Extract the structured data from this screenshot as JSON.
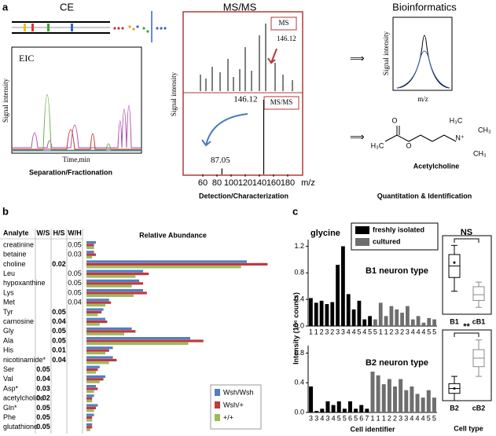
{
  "panel_a": {
    "label": "a",
    "ce": "CE",
    "msms": "MS/MS",
    "bio": "Bioinformatics",
    "eic": "EIC",
    "eic_ylabel": "Signal intensity",
    "eic_xlabel": "Time,min",
    "eic_caption": "Separation/Fractionation",
    "ms_tag": "MS",
    "ms_label": 146.12,
    "msms_tag": "MS/MS",
    "ms_ylabel": "Signal intensity",
    "ms_caption": "Detection/Characterization",
    "bio_ylabel": "Signal intensity",
    "bio_xlabel": "m/z",
    "molecule": {
      "o1": "O",
      "o2": "O",
      "h3c": "H₃C",
      "n": "N⁺",
      "ch3a": "CH₃",
      "ch3b": "CH₃",
      "h3c2": "H₃C",
      "name": "Acetylcholine"
    },
    "bio_caption": "Quantitation & Identification"
  },
  "chart_data": [
    {
      "type": "hbar",
      "label": "b",
      "title": "Relative Abundance",
      "category_header": "Analyte",
      "categories": [
        "creatinine",
        "betaine",
        "choline",
        "Leu",
        "hypoxanthine",
        "Lys",
        "Met",
        "Tyr",
        "carnosine",
        "Gly",
        "Ala",
        "His",
        "nicotinamide*",
        "Ser",
        "Val",
        "Asp*",
        "acetylcholine",
        "Gln*",
        "Phe",
        "glutathione"
      ],
      "pvalues": {
        "columns": [
          "W/S",
          "H/S",
          "W/H"
        ],
        "colors": [
          "#000000",
          "#000000",
          "#5b8bd6"
        ],
        "rows": [
          [
            null,
            null,
            0.05
          ],
          [
            null,
            null,
            0.03
          ],
          [
            null,
            0.02,
            null
          ],
          [
            null,
            null,
            0.05
          ],
          [
            null,
            null,
            0.05
          ],
          [
            null,
            null,
            0.05
          ],
          [
            null,
            null,
            0.04
          ],
          [
            null,
            0.05,
            null
          ],
          [
            null,
            0.04,
            null
          ],
          [
            null,
            0.05,
            null
          ],
          [
            null,
            0.05,
            null
          ],
          [
            null,
            0.01,
            null
          ],
          [
            null,
            0.04,
            null
          ],
          [
            0.05,
            null,
            null
          ],
          [
            0.04,
            null,
            null
          ],
          [
            0.03,
            null,
            null
          ],
          [
            0.02,
            null,
            null
          ],
          [
            0.05,
            null,
            null
          ],
          [
            0.05,
            null,
            null
          ],
          [
            0.05,
            null,
            null
          ]
        ]
      },
      "xlim": [
        0,
        100
      ],
      "series": [
        {
          "name": "Wsh/Wsh",
          "color": "#4f7fc4",
          "values": [
            5,
            4,
            85,
            30,
            28,
            30,
            12,
            9,
            10,
            24,
            55,
            14,
            14,
            7,
            10,
            5,
            4,
            6,
            4,
            3
          ]
        },
        {
          "name": "Wsh/+",
          "color": "#c0393b",
          "values": [
            4,
            5,
            96,
            33,
            30,
            32,
            13,
            8,
            11,
            26,
            62,
            12,
            16,
            6,
            9,
            6,
            3,
            5,
            3,
            3
          ]
        },
        {
          "name": "+/+",
          "color": "#9bbb59",
          "values": [
            4,
            3,
            82,
            26,
            24,
            25,
            10,
            6,
            7,
            20,
            54,
            10,
            12,
            5,
            7,
            4,
            3,
            4,
            3,
            2
          ]
        }
      ]
    },
    {
      "type": "bar",
      "label": "c",
      "title": "glycine",
      "annotation": "B1 neuron type",
      "ylabel": "Intensity (10⁶ counts)",
      "categories": [
        "1",
        "1",
        "2",
        "3",
        "2",
        "3",
        "3",
        "4",
        "4",
        "5",
        "4",
        "5",
        "5",
        "1",
        "1",
        "2",
        "3",
        "2",
        "3",
        "4",
        "4",
        "4",
        "5",
        "5"
      ],
      "ylim": [
        0,
        1.3
      ],
      "yticks": [
        {
          "value": 0,
          "label": "0.0"
        },
        0.4,
        0.8,
        1.2
      ],
      "series": [
        {
          "name": "freshly isolated",
          "color": "#000000",
          "values": [
            0.42,
            0.35,
            0.38,
            0.33,
            0.36,
            0.92,
            1.2,
            0.48,
            0.25,
            0.38,
            0.1,
            0.15,
            null,
            null,
            null,
            null,
            null,
            null,
            null,
            null,
            null,
            null,
            null,
            null
          ]
        },
        {
          "name": "cultured",
          "color": "#6e6e6e",
          "values": [
            null,
            null,
            null,
            null,
            null,
            null,
            null,
            null,
            null,
            null,
            null,
            null,
            0.1,
            0.35,
            0.15,
            0.3,
            0.25,
            0.2,
            0.3,
            0.1,
            0.15,
            0.05,
            0.12,
            0.1
          ]
        }
      ]
    },
    {
      "type": "bar",
      "annotation": "B2 neuron type",
      "xlabel": "Cell identifier",
      "categories": [
        "3",
        "3",
        "4",
        "3",
        "4",
        "5",
        "5",
        "6",
        "5",
        "6",
        "7",
        "1",
        "1",
        "1",
        "2",
        "2",
        "3",
        "3",
        "4",
        "4",
        "4",
        "5",
        "5"
      ],
      "ylim": [
        0,
        0.9
      ],
      "yticks": [
        {
          "value": 0,
          "label": "0.0"
        },
        0.4,
        0.8
      ],
      "series": [
        {
          "color": "#000000",
          "values": [
            0.35,
            0.02,
            0.05,
            0.15,
            0.1,
            0.15,
            0.05,
            0.15,
            0.05,
            0.1,
            0.05,
            null,
            null,
            null,
            null,
            null,
            null,
            null,
            null,
            null,
            null,
            null,
            null
          ]
        },
        {
          "color": "#6e6e6e",
          "values": [
            null,
            null,
            null,
            null,
            null,
            null,
            null,
            null,
            null,
            null,
            null,
            0.55,
            0.5,
            0.38,
            0.45,
            0.35,
            0.45,
            0.3,
            0.35,
            0.25,
            0.2,
            0.3,
            0.2
          ]
        }
      ]
    },
    {
      "type": "box",
      "annotation": "NS",
      "categories": [
        "B1",
        "cB1"
      ],
      "colors": [
        "#000000",
        "#8a8a8a"
      ],
      "ylim": [
        0,
        0.65
      ],
      "boxes": [
        {
          "min": 0.2,
          "q1": 0.32,
          "median": 0.42,
          "q3": 0.52,
          "max": 0.6,
          "mean": 0.45
        },
        {
          "min": 0.06,
          "q1": 0.12,
          "median": 0.17,
          "q3": 0.24,
          "max": 0.28
        }
      ]
    },
    {
      "type": "box",
      "annotation": "**",
      "xlabel": "Cell type",
      "categories": [
        "B2",
        "cB2"
      ],
      "colors": [
        "#000000",
        "#8a8a8a"
      ],
      "ylim": [
        0,
        0.55
      ],
      "boxes": [
        {
          "min": 0.0,
          "q1": 0.06,
          "median": 0.1,
          "q3": 0.14,
          "max": 0.2,
          "mean": 0.1
        },
        {
          "min": 0.2,
          "q1": 0.28,
          "median": 0.35,
          "q3": 0.42,
          "max": 0.5
        }
      ]
    },
    {
      "type": "spectrum",
      "xlabel": "m/z",
      "xlim": [
        50,
        200
      ],
      "xticks": [
        60,
        80,
        100,
        120,
        140,
        160,
        180
      ],
      "peaks": [
        87.05,
        146.12
      ],
      "intensities": [
        8,
        100
      ]
    }
  ]
}
